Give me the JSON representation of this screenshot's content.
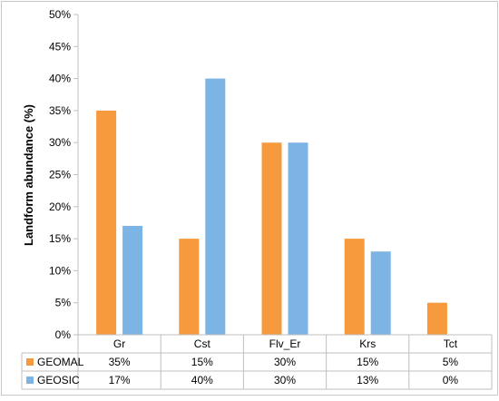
{
  "chart_data": {
    "type": "bar",
    "title": "",
    "xlabel": "",
    "ylabel": "Landform abundance (%)",
    "ylim": [
      0,
      50
    ],
    "yticks": [
      "0%",
      "5%",
      "10%",
      "15%",
      "20%",
      "25%",
      "30%",
      "35%",
      "40%",
      "45%",
      "50%"
    ],
    "categories": [
      "Gr",
      "Cst",
      "Flv_Er",
      "Krs",
      "Tct"
    ],
    "series": [
      {
        "name": "GEOMAL",
        "color": "#F79A3E",
        "values": [
          35,
          15,
          30,
          15,
          5
        ],
        "labels": [
          "35%",
          "15%",
          "30%",
          "15%",
          "5%"
        ]
      },
      {
        "name": "GEOSIC",
        "color": "#7CB4E5",
        "values": [
          17,
          40,
          30,
          13,
          0
        ],
        "labels": [
          "17%",
          "40%",
          "30%",
          "13%",
          "0%"
        ]
      }
    ],
    "grid": false,
    "legend": "data-table-below"
  }
}
